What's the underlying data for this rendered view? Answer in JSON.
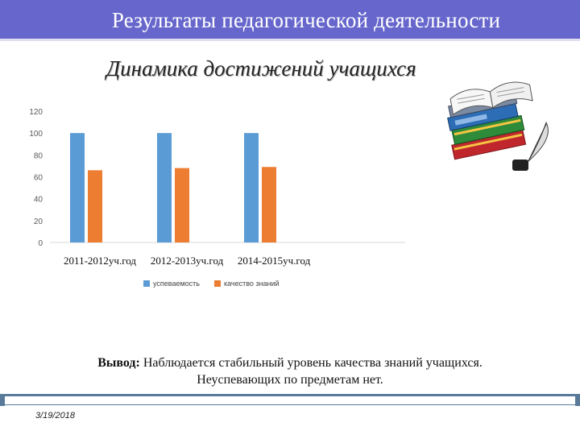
{
  "header": {
    "title": "Результаты педагогической деятельности"
  },
  "subtitle": "Динамика достижений учащихся",
  "chart_data": {
    "type": "bar",
    "categories": [
      "2011-2012уч.год",
      "2012-2013уч.год",
      "2014-2015уч.год"
    ],
    "series": [
      {
        "name": "успеваемость",
        "values": [
          100,
          100,
          100
        ],
        "color": "#5b9bd5"
      },
      {
        "name": "качество знаний",
        "values": [
          66,
          68,
          69
        ],
        "color": "#ed7d31"
      }
    ],
    "ylim": [
      0,
      120
    ],
    "yticks": [
      0,
      20,
      40,
      60,
      80,
      100,
      120
    ],
    "grid": false,
    "legend": "bottom",
    "title": "",
    "xlabel": "",
    "ylabel": ""
  },
  "conclusion": {
    "label": "Вывод:",
    "line1": "Наблюдается стабильный уровень качества знаний учащихся.",
    "line2": "Неуспевающих по предметам нет."
  },
  "footer": {
    "date": "3/19/2018"
  },
  "decor": {
    "books_icon": "books-and-quill-icon"
  }
}
